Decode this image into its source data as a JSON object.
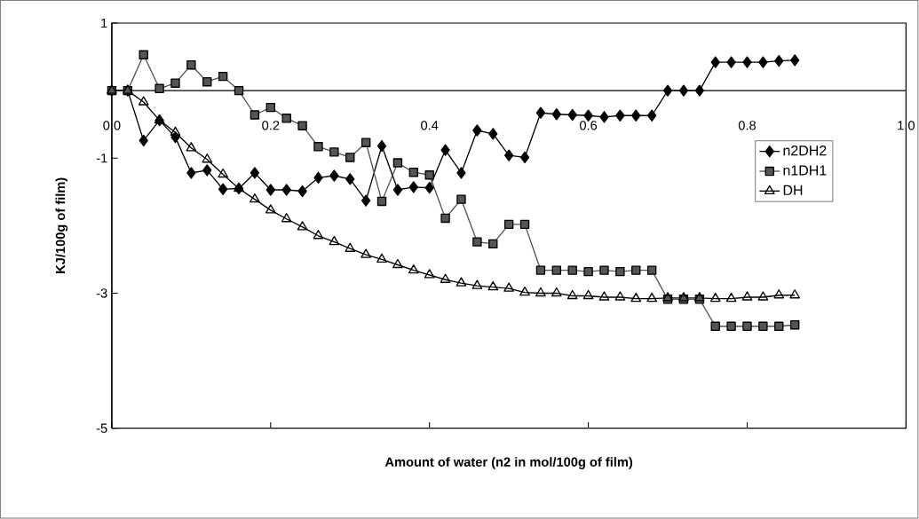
{
  "chart_data": {
    "type": "line",
    "xlabel": "Amount of water (n2 in mol/100g of film)",
    "ylabel": "KJ/100g of film)",
    "x": [
      0,
      0.02,
      0.04,
      0.06,
      0.08,
      0.1,
      0.12,
      0.14,
      0.16,
      0.18,
      0.2,
      0.22,
      0.24,
      0.26,
      0.28,
      0.3,
      0.32,
      0.34,
      0.36,
      0.38,
      0.4,
      0.42,
      0.44,
      0.46,
      0.48,
      0.5,
      0.52,
      0.54,
      0.56,
      0.58,
      0.6,
      0.62,
      0.64,
      0.66,
      0.68,
      0.7,
      0.72,
      0.74,
      0.76,
      0.78,
      0.8,
      0.82,
      0.84,
      0.86
    ],
    "series": [
      {
        "name": "n2DH2",
        "color": "#000000",
        "marker": "diamond",
        "values": [
          0,
          0,
          -0.74,
          -0.44,
          -0.69,
          -1.22,
          -1.18,
          -1.46,
          -1.45,
          -1.22,
          -1.47,
          -1.47,
          -1.49,
          -1.29,
          -1.26,
          -1.31,
          -1.63,
          -0.82,
          -1.47,
          -1.43,
          -1.44,
          -0.88,
          -1.22,
          -0.59,
          -0.64,
          -0.96,
          -0.99,
          -0.33,
          -0.35,
          -0.36,
          -0.37,
          -0.39,
          -0.37,
          -0.37,
          -0.37,
          0,
          0,
          0,
          0.42,
          0.42,
          0.42,
          0.42,
          0.44,
          0.45
        ]
      },
      {
        "name": "n1DH1",
        "color": "#555555",
        "marker": "square",
        "values": [
          0,
          0,
          0.53,
          0.03,
          0.11,
          0.38,
          0.13,
          0.21,
          0,
          -0.36,
          -0.25,
          -0.41,
          -0.52,
          -0.83,
          -0.91,
          -0.99,
          -0.77,
          -1.64,
          -1.07,
          -1.21,
          -1.25,
          -1.89,
          -1.61,
          -2.24,
          -2.27,
          -1.98,
          -1.98,
          -2.66,
          -2.66,
          -2.66,
          -2.68,
          -2.66,
          -2.68,
          -2.66,
          -2.66,
          -3.09,
          -3.09,
          -3.09,
          -3.49,
          -3.49,
          -3.49,
          -3.49,
          -3.49,
          -3.47
        ]
      },
      {
        "name": "DH",
        "color": "#000000",
        "marker": "triangle",
        "values": [
          0,
          0,
          -0.17,
          -0.44,
          -0.62,
          -0.85,
          -1.02,
          -1.24,
          -1.45,
          -1.61,
          -1.77,
          -1.9,
          -2.02,
          -2.15,
          -2.24,
          -2.34,
          -2.43,
          -2.5,
          -2.58,
          -2.66,
          -2.73,
          -2.8,
          -2.85,
          -2.89,
          -2.91,
          -2.93,
          -2.99,
          -3,
          -3,
          -3.04,
          -3.04,
          -3.06,
          -3.06,
          -3.08,
          -3.08,
          -3.07,
          -3.07,
          -3.07,
          -3.08,
          -3.08,
          -3.06,
          -3.06,
          -3.03,
          -3.03
        ]
      }
    ],
    "xlim": [
      0,
      1
    ],
    "ylim": [
      -5,
      1
    ],
    "xticks": [
      {
        "value": 0,
        "label": "0.0"
      },
      0.2,
      0.4,
      0.6,
      0.8,
      {
        "value": 1,
        "label": "1.0"
      }
    ],
    "yticks": [
      1,
      -1,
      -3,
      -5
    ],
    "legend": "right",
    "grid": false,
    "line_style": "solid"
  }
}
